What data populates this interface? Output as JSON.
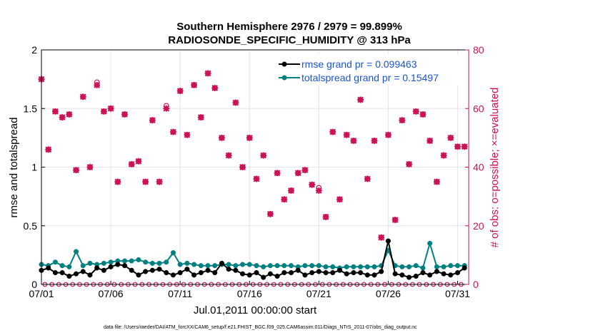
{
  "colors": {
    "rmse": "#000000",
    "spread": "#008080",
    "obs": "#cc1155",
    "grid": "#e6e6e6",
    "legend_rmse_text": "#1a55cc",
    "legend_spread_text": "#1a55cc"
  },
  "chart_data": {
    "type": "line",
    "title": "Southern Hemisphere 2976 / 2979 = 99.899%",
    "subtitle": "RADIOSONDE_SPECIFIC_HUMIDITY @ 313 hPa",
    "xlabel": "Jul.01,2011 00:00:00 start",
    "ylabel_left": "rmse and totalspread",
    "ylabel_right": "# of obs: o=possible; ×=evaluated",
    "footer": "data file: /Users/raeder/DAI/ATM_forcXX/CAM6_setup/f.e21.FHIST_BGC.f09_025.CAM6assim.011/Diags_NTrS_2011-07/obs_diag_output.nc",
    "xlim": [
      0,
      30.8
    ],
    "ylim_left": [
      0,
      2
    ],
    "ylim_right": [
      0,
      80
    ],
    "x_ticks": [
      {
        "value": 0,
        "label": "07/01"
      },
      {
        "value": 5,
        "label": "07/06"
      },
      {
        "value": 10,
        "label": "07/11"
      },
      {
        "value": 15,
        "label": "07/16"
      },
      {
        "value": 20,
        "label": "07/21"
      },
      {
        "value": 25,
        "label": "07/26"
      },
      {
        "value": 30,
        "label": "07/31"
      }
    ],
    "y_left_ticks": [
      {
        "value": 0,
        "label": "0"
      },
      {
        "value": 0.5,
        "label": "0.5"
      },
      {
        "value": 1,
        "label": "1"
      },
      {
        "value": 1.5,
        "label": "1.5"
      },
      {
        "value": 2,
        "label": "2"
      }
    ],
    "y_right_ticks": [
      {
        "value": 0,
        "label": "0"
      },
      {
        "value": 20,
        "label": "20"
      },
      {
        "value": 40,
        "label": "40"
      },
      {
        "value": 60,
        "label": "60"
      },
      {
        "value": 80,
        "label": "80"
      }
    ],
    "legend": [
      {
        "label": "rmse grand pr = 0.099463",
        "series": "rmse"
      },
      {
        "label": "totalspread grand pr = 0.15497",
        "series": "spread"
      }
    ],
    "legend_position": "top-right",
    "grid": true,
    "series": [
      {
        "name": "rmse",
        "x": [
          0,
          0.5,
          1,
          1.5,
          2,
          2.5,
          3,
          3.5,
          4,
          4.5,
          5,
          5.5,
          6,
          6.5,
          7,
          7.5,
          8,
          8.5,
          9,
          9.5,
          10,
          10.5,
          11,
          11.5,
          12,
          12.5,
          13,
          13.5,
          14,
          14.5,
          15,
          15.5,
          16,
          16.5,
          17,
          17.5,
          18,
          18.5,
          19,
          19.5,
          20,
          20.5,
          21,
          21.5,
          22,
          22.5,
          23,
          23.5,
          24,
          24.5,
          25,
          25.5,
          26,
          26.5,
          27,
          27.5,
          28,
          28.5,
          29,
          29.5,
          30,
          30.5
        ],
        "values": [
          0.12,
          0.14,
          0.1,
          0.1,
          0.07,
          0.09,
          0.11,
          0.08,
          0.14,
          0.12,
          0.15,
          0.17,
          0.16,
          0.12,
          0.08,
          0.11,
          0.12,
          0.13,
          0.1,
          0.08,
          0.1,
          0.13,
          0.08,
          0.1,
          0.12,
          0.1,
          0.18,
          0.13,
          0.12,
          0.09,
          0.08,
          0.1,
          0.06,
          0.09,
          0.07,
          0.1,
          0.1,
          0.12,
          0.08,
          0.1,
          0.11,
          0.1,
          0.1,
          0.12,
          0.09,
          0.1,
          0.1,
          0.08,
          0.08,
          0.11,
          0.37,
          0.09,
          0.08,
          0.06,
          0.07,
          0.1,
          0.08,
          0.11,
          0.09,
          0.08,
          0.1,
          0.14
        ]
      },
      {
        "name": "totalspread",
        "x": [
          0,
          0.5,
          1,
          1.5,
          2,
          2.5,
          3,
          3.5,
          4,
          4.5,
          5,
          5.5,
          6,
          6.5,
          7,
          7.5,
          8,
          8.5,
          9,
          9.5,
          10,
          10.5,
          11,
          11.5,
          12,
          12.5,
          13,
          13.5,
          14,
          14.5,
          15,
          15.5,
          16,
          16.5,
          17,
          17.5,
          18,
          18.5,
          19,
          19.5,
          20,
          20.5,
          21,
          21.5,
          22,
          22.5,
          23,
          23.5,
          24,
          24.5,
          25,
          25.5,
          26,
          26.5,
          27,
          27.5,
          28,
          28.5,
          29,
          29.5,
          30,
          30.5
        ],
        "values": [
          0.17,
          0.16,
          0.19,
          0.16,
          0.15,
          0.28,
          0.16,
          0.18,
          0.17,
          0.18,
          0.19,
          0.2,
          0.2,
          0.2,
          0.21,
          0.19,
          0.18,
          0.18,
          0.19,
          0.27,
          0.17,
          0.18,
          0.17,
          0.16,
          0.16,
          0.16,
          0.17,
          0.17,
          0.16,
          0.17,
          0.17,
          0.16,
          0.15,
          0.16,
          0.16,
          0.16,
          0.16,
          0.15,
          0.16,
          0.16,
          0.16,
          0.15,
          0.15,
          0.14,
          0.15,
          0.15,
          0.15,
          0.15,
          0.15,
          0.16,
          0.29,
          0.16,
          0.15,
          0.15,
          0.16,
          0.14,
          0.35,
          0.15,
          0.15,
          0.16,
          0.16,
          0.16
        ]
      },
      {
        "name": "obs_possible",
        "x": [
          0,
          0.5,
          1,
          1.5,
          2,
          2.5,
          3,
          3.5,
          4,
          4.5,
          5,
          5.5,
          6,
          6.5,
          7,
          7.5,
          8,
          8.5,
          9,
          9.5,
          10,
          10.5,
          11,
          11.5,
          12,
          12.5,
          13,
          13.5,
          14,
          14.5,
          15,
          15.5,
          16,
          16.5,
          17,
          17.5,
          18,
          18.5,
          19,
          19.5,
          20,
          20.5,
          21,
          21.5,
          22,
          22.5,
          23,
          23.5,
          24,
          24.5,
          25,
          25.5,
          26,
          26.5,
          27,
          27.5,
          28,
          28.5,
          29,
          29.5,
          30,
          30.5
        ],
        "values": [
          70,
          46,
          59,
          57,
          58,
          39,
          64,
          40,
          69,
          59,
          60,
          35,
          58,
          41,
          42,
          35,
          56,
          35,
          61,
          52,
          66,
          51,
          68,
          57,
          72,
          67,
          50,
          44,
          62,
          40,
          50,
          36,
          44,
          24,
          38,
          29,
          32,
          38,
          39,
          34,
          33,
          23,
          52,
          29,
          51,
          49,
          63,
          36,
          49,
          16,
          51,
          22,
          56,
          41,
          59,
          58,
          49,
          35,
          44,
          50,
          47,
          47
        ]
      },
      {
        "name": "obs_evaluated",
        "x": [
          0,
          0.5,
          1,
          1.5,
          2,
          2.5,
          3,
          3.5,
          4,
          4.5,
          5,
          5.5,
          6,
          6.5,
          7,
          7.5,
          8,
          8.5,
          9,
          9.5,
          10,
          10.5,
          11,
          11.5,
          12,
          12.5,
          13,
          13.5,
          14,
          14.5,
          15,
          15.5,
          16,
          16.5,
          17,
          17.5,
          18,
          18.5,
          19,
          19.5,
          20,
          20.5,
          21,
          21.5,
          22,
          22.5,
          23,
          23.5,
          24,
          24.5,
          25,
          25.5,
          26,
          26.5,
          27,
          27.5,
          28,
          28.5,
          29,
          29.5,
          30,
          30.5
        ],
        "values": [
          70,
          46,
          59,
          57,
          58,
          39,
          64,
          40,
          68,
          59,
          60,
          35,
          58,
          41,
          42,
          35,
          56,
          35,
          60,
          52,
          66,
          51,
          68,
          57,
          72,
          67,
          50,
          44,
          62,
          40,
          50,
          36,
          44,
          24,
          38,
          29,
          32,
          38,
          39,
          34,
          32,
          23,
          52,
          29,
          51,
          49,
          63,
          36,
          49,
          16,
          51,
          22,
          56,
          41,
          59,
          58,
          49,
          35,
          44,
          50,
          47,
          47
        ]
      },
      {
        "name": "obs_zero_count",
        "x": [
          0.25,
          0.75,
          1.25,
          1.75,
          2.25,
          2.75,
          3.25,
          3.75,
          4.25,
          4.75,
          5.25,
          5.75,
          6.25,
          6.75,
          7.25,
          7.75,
          8.25,
          8.75,
          9.25,
          9.75,
          10.25,
          10.75,
          11.25,
          11.75,
          12.25,
          12.75,
          13.25,
          13.75,
          14.25,
          14.75,
          15.25,
          15.75,
          16.25,
          16.75,
          17.25,
          17.75,
          18.25,
          18.75,
          19.25,
          19.75,
          20.25,
          20.75,
          21.25,
          21.75,
          22.25,
          22.75,
          23.25,
          23.75,
          24.25,
          24.75,
          25.25,
          25.75,
          26.25,
          26.75,
          27.25,
          27.75,
          28.25,
          28.75,
          29.25,
          29.75,
          30.25
        ],
        "values": [
          0,
          0,
          0,
          0,
          0,
          0,
          0,
          0,
          0,
          0,
          0,
          0,
          0,
          0,
          0,
          0,
          0,
          0,
          0,
          0,
          0,
          0,
          0,
          0,
          0,
          0,
          0,
          0,
          0,
          0,
          0,
          0,
          0,
          0,
          0,
          0,
          0,
          0,
          0,
          0,
          0,
          0,
          0,
          0,
          0,
          0,
          0,
          0,
          0,
          0,
          0,
          0,
          0,
          0,
          0,
          0,
          0,
          0,
          0,
          0,
          0
        ]
      }
    ]
  }
}
